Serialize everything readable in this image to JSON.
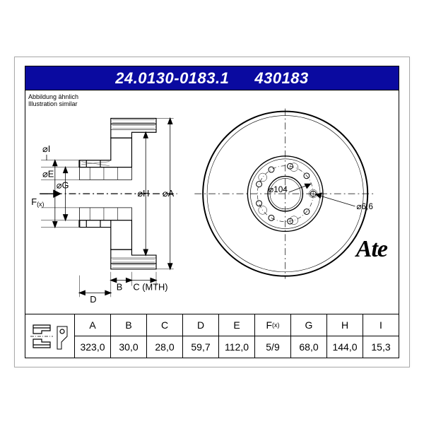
{
  "header": {
    "part_no": "24.0130-0183.1",
    "short_no": "430183",
    "bg_color": "#0a0aa0",
    "text_color": "#ffffff",
    "font_size": 22
  },
  "caption": {
    "line1": "Abbildung ähnlich",
    "line2": "Illustration similar",
    "font_size": 9
  },
  "front_view": {
    "center_dia_label": "⌀104",
    "hole_dia_label": "⌀6,6"
  },
  "side_view": {
    "labels": {
      "I": "⌀I",
      "E": "⌀E",
      "G": "⌀G",
      "H": "⌀H",
      "A": "⌀A",
      "F": "F",
      "Fsub": "(x)",
      "B": "B",
      "C": "C (MTH)",
      "D": "D"
    }
  },
  "logo": {
    "text": "Ate"
  },
  "spec_table": {
    "columns": [
      {
        "header": "A",
        "value": "323,0"
      },
      {
        "header": "B",
        "value": "30,0"
      },
      {
        "header": "C",
        "value": "28,0"
      },
      {
        "header": "D",
        "value": "59,7"
      },
      {
        "header": "E",
        "value": "112,0"
      },
      {
        "header": "F(x)",
        "value": "5/9"
      },
      {
        "header": "G",
        "value": "68,0"
      },
      {
        "header": "H",
        "value": "144,0"
      },
      {
        "header": "I",
        "value": "15,3"
      }
    ],
    "font_size": 14
  },
  "style": {
    "stroke": "#000000",
    "bg": "#ffffff",
    "border": "#aaaaaa"
  }
}
